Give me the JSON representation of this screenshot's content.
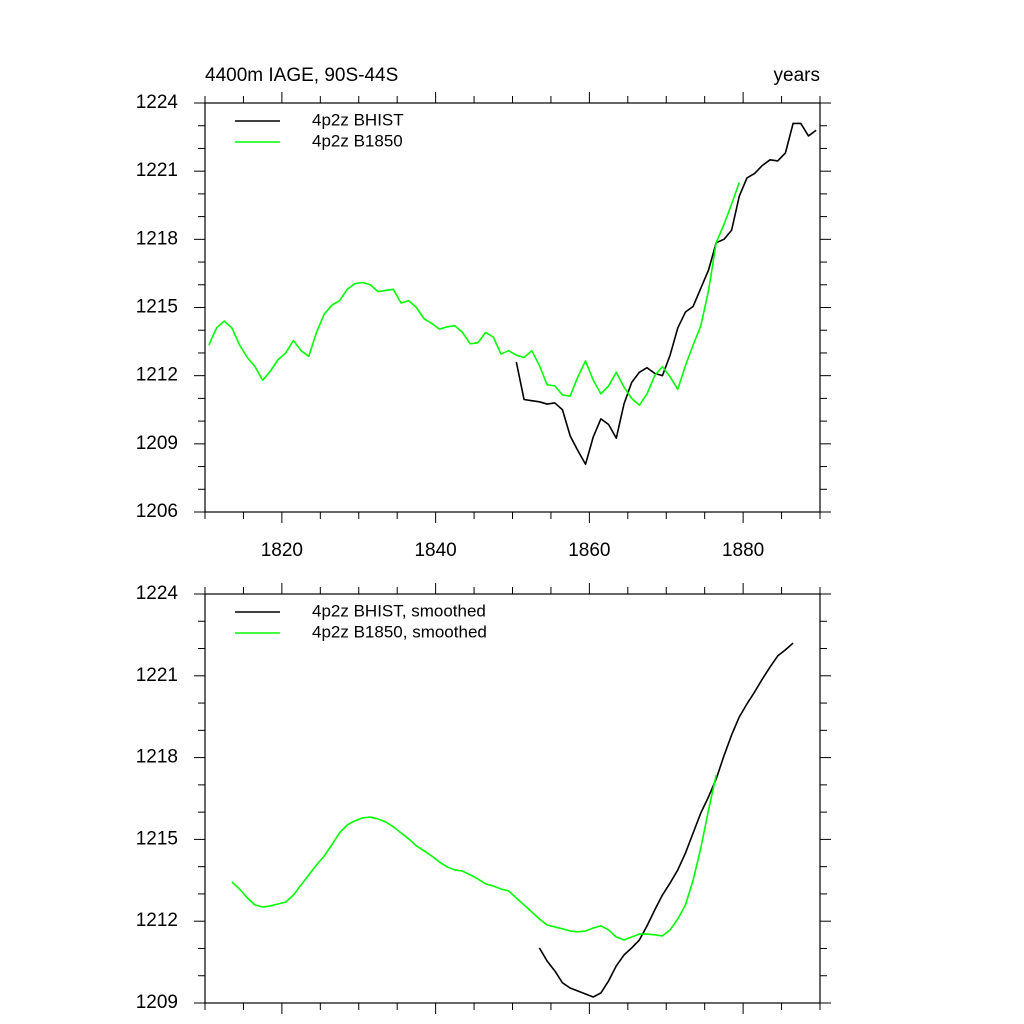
{
  "chart_data": [
    {
      "type": "line",
      "title": "4400m IAGE, 90S-44S",
      "title_right": "years",
      "x": [
        1810.5,
        1811.5,
        1812.5,
        1813.5,
        1814.5,
        1815.5,
        1816.5,
        1817.5,
        1818.5,
        1819.5,
        1820.5,
        1821.5,
        1822.5,
        1823.5,
        1824.5,
        1825.5,
        1826.5,
        1827.5,
        1828.5,
        1829.5,
        1830.5,
        1831.5,
        1832.5,
        1833.5,
        1834.5,
        1835.5,
        1836.5,
        1837.5,
        1838.5,
        1839.5,
        1840.5,
        1841.5,
        1842.5,
        1843.5,
        1844.5,
        1845.5,
        1846.5,
        1847.5,
        1848.5,
        1849.5,
        1850.5,
        1851.5,
        1852.5,
        1853.5,
        1854.5,
        1855.5,
        1856.5,
        1857.5,
        1858.5,
        1859.5,
        1860.5,
        1861.5,
        1862.5,
        1863.5,
        1864.5,
        1865.5,
        1866.5,
        1867.5,
        1868.5,
        1869.5,
        1870.5,
        1871.5,
        1872.5,
        1873.5,
        1874.5,
        1875.5,
        1876.5,
        1877.5,
        1878.5,
        1879.5,
        1880.5,
        1881.5,
        1882.5,
        1883.5,
        1884.5,
        1885.5,
        1886.5,
        1887.5,
        1888.5,
        1889.5
      ],
      "series": [
        {
          "name": "4p2z BHIST",
          "color": "#000000",
          "values": [
            null,
            null,
            null,
            null,
            null,
            null,
            null,
            null,
            null,
            null,
            null,
            null,
            null,
            null,
            null,
            null,
            null,
            null,
            null,
            null,
            null,
            null,
            null,
            null,
            null,
            null,
            null,
            null,
            null,
            null,
            null,
            null,
            null,
            null,
            null,
            null,
            null,
            null,
            null,
            null,
            1212.6,
            1210.95,
            1210.9,
            1210.85,
            1210.75,
            1210.8,
            1210.5,
            1209.35,
            1208.7,
            1208.1,
            1209.3,
            1210.1,
            1209.85,
            1209.25,
            1210.75,
            1211.7,
            1212.15,
            1212.35,
            1212.1,
            1212.0,
            1212.9,
            1214.1,
            1214.8,
            1215.05,
            1215.85,
            1216.65,
            1217.85,
            1218.0,
            1218.4,
            1219.9,
            1220.7,
            1220.9,
            1221.25,
            1221.5,
            1221.45,
            1221.8,
            1223.1,
            1223.1,
            1222.55,
            1222.8
          ]
        },
        {
          "name": "4p2z B1850",
          "color": "#00ff00",
          "values": [
            1213.35,
            1214.1,
            1214.4,
            1214.1,
            1213.35,
            1212.8,
            1212.4,
            1211.8,
            1212.2,
            1212.7,
            1213.0,
            1213.55,
            1213.1,
            1212.85,
            1213.9,
            1214.7,
            1215.1,
            1215.3,
            1215.8,
            1216.05,
            1216.1,
            1216.0,
            1215.7,
            1215.75,
            1215.8,
            1215.2,
            1215.3,
            1215.0,
            1214.5,
            1214.3,
            1214.05,
            1214.15,
            1214.2,
            1213.9,
            1213.4,
            1213.45,
            1213.9,
            1213.7,
            1212.95,
            1213.1,
            1212.9,
            1212.8,
            1213.1,
            1212.45,
            1211.6,
            1211.55,
            1211.15,
            1211.1,
            1211.95,
            1212.65,
            1211.8,
            1211.2,
            1211.55,
            1212.15,
            1211.5,
            1211.0,
            1210.7,
            1211.2,
            1212.0,
            1212.4,
            1211.95,
            1211.4,
            1212.45,
            1213.35,
            1214.2,
            1215.75,
            1217.85,
            1218.65,
            1219.55,
            1220.5,
            null,
            null,
            null,
            null,
            null,
            null,
            null,
            null,
            null,
            null
          ]
        }
      ],
      "xlim": [
        1810,
        1890
      ],
      "xticks": [
        1820,
        1840,
        1860,
        1880
      ],
      "xminorticks": [
        1810,
        1815,
        1825,
        1830,
        1835,
        1845,
        1850,
        1855,
        1865,
        1870,
        1875,
        1885,
        1890
      ],
      "xtick_labels": true,
      "ylim": [
        1206,
        1224
      ],
      "yticks": [
        1206,
        1209,
        1212,
        1215,
        1218,
        1221,
        1224
      ],
      "yminorticks": [
        1207,
        1208,
        1210,
        1211,
        1213,
        1214,
        1216,
        1217,
        1219,
        1220,
        1222,
        1223
      ],
      "legend": "top-left"
    },
    {
      "type": "line",
      "x": [
        1810.5,
        1811.5,
        1812.5,
        1813.5,
        1814.5,
        1815.5,
        1816.5,
        1817.5,
        1818.5,
        1819.5,
        1820.5,
        1821.5,
        1822.5,
        1823.5,
        1824.5,
        1825.5,
        1826.5,
        1827.5,
        1828.5,
        1829.5,
        1830.5,
        1831.5,
        1832.5,
        1833.5,
        1834.5,
        1835.5,
        1836.5,
        1837.5,
        1838.5,
        1839.5,
        1840.5,
        1841.5,
        1842.5,
        1843.5,
        1844.5,
        1845.5,
        1846.5,
        1847.5,
        1848.5,
        1849.5,
        1850.5,
        1851.5,
        1852.5,
        1853.5,
        1854.5,
        1855.5,
        1856.5,
        1857.5,
        1858.5,
        1859.5,
        1860.5,
        1861.5,
        1862.5,
        1863.5,
        1864.5,
        1865.5,
        1866.5,
        1867.5,
        1868.5,
        1869.5,
        1870.5,
        1871.5,
        1872.5,
        1873.5,
        1874.5,
        1875.5,
        1876.5,
        1877.5,
        1878.5,
        1879.5,
        1880.5,
        1881.5,
        1882.5,
        1883.5,
        1884.5,
        1885.5,
        1886.5,
        1887.5,
        1888.5,
        1889.5
      ],
      "series": [
        {
          "name": "4p2z BHIST, smoothed",
          "color": "#000000",
          "values": [
            null,
            null,
            null,
            null,
            null,
            null,
            null,
            null,
            null,
            null,
            null,
            null,
            null,
            null,
            null,
            null,
            null,
            null,
            null,
            null,
            null,
            null,
            null,
            null,
            null,
            null,
            null,
            null,
            null,
            null,
            null,
            null,
            null,
            null,
            null,
            null,
            null,
            null,
            null,
            null,
            null,
            null,
            null,
            1211.02,
            1210.54,
            1210.18,
            1209.74,
            1209.55,
            1209.44,
            1209.33,
            1209.22,
            1209.37,
            1209.81,
            1210.36,
            1210.76,
            1211.02,
            1211.31,
            1211.83,
            1212.41,
            1212.96,
            1213.4,
            1213.88,
            1214.5,
            1215.24,
            1215.97,
            1216.56,
            1217.22,
            1218.06,
            1218.83,
            1219.49,
            1219.97,
            1220.41,
            1220.88,
            1221.32,
            1221.73,
            1221.95,
            1222.2,
            null,
            null,
            null
          ]
        },
        {
          "name": "4p2z B1850, smoothed",
          "color": "#00ff00",
          "values": [
            null,
            null,
            null,
            1213.44,
            1213.18,
            1212.85,
            1212.6,
            1212.52,
            1212.56,
            1212.63,
            1212.7,
            1212.96,
            1213.33,
            1213.7,
            1214.06,
            1214.39,
            1214.8,
            1215.24,
            1215.53,
            1215.68,
            1215.79,
            1215.82,
            1215.75,
            1215.64,
            1215.46,
            1215.24,
            1215.02,
            1214.76,
            1214.58,
            1214.39,
            1214.17,
            1213.99,
            1213.88,
            1213.84,
            1213.7,
            1213.55,
            1213.37,
            1213.29,
            1213.18,
            1213.11,
            1212.85,
            1212.6,
            1212.34,
            1212.08,
            1211.86,
            1211.79,
            1211.72,
            1211.64,
            1211.61,
            1211.64,
            1211.75,
            1211.83,
            1211.68,
            1211.42,
            1211.31,
            1211.42,
            1211.53,
            1211.53,
            1211.5,
            1211.46,
            1211.68,
            1212.08,
            1212.6,
            1213.51,
            1214.69,
            1216.08,
            1217.36,
            null,
            null,
            null,
            null,
            null,
            null,
            null,
            null,
            null,
            null,
            null,
            null,
            null
          ]
        }
      ],
      "xlim": [
        1810,
        1890
      ],
      "xticks": [
        1820,
        1840,
        1860,
        1880
      ],
      "xminorticks": [
        1810,
        1815,
        1825,
        1830,
        1835,
        1845,
        1850,
        1855,
        1865,
        1870,
        1875,
        1885,
        1890
      ],
      "xtick_labels": false,
      "ylim": [
        1209,
        1224
      ],
      "yticks": [
        1209,
        1212,
        1215,
        1218,
        1221,
        1224
      ],
      "yminorticks": [
        1210,
        1211,
        1213,
        1214,
        1216,
        1217,
        1219,
        1220,
        1222,
        1223
      ],
      "legend": "top-left"
    }
  ]
}
